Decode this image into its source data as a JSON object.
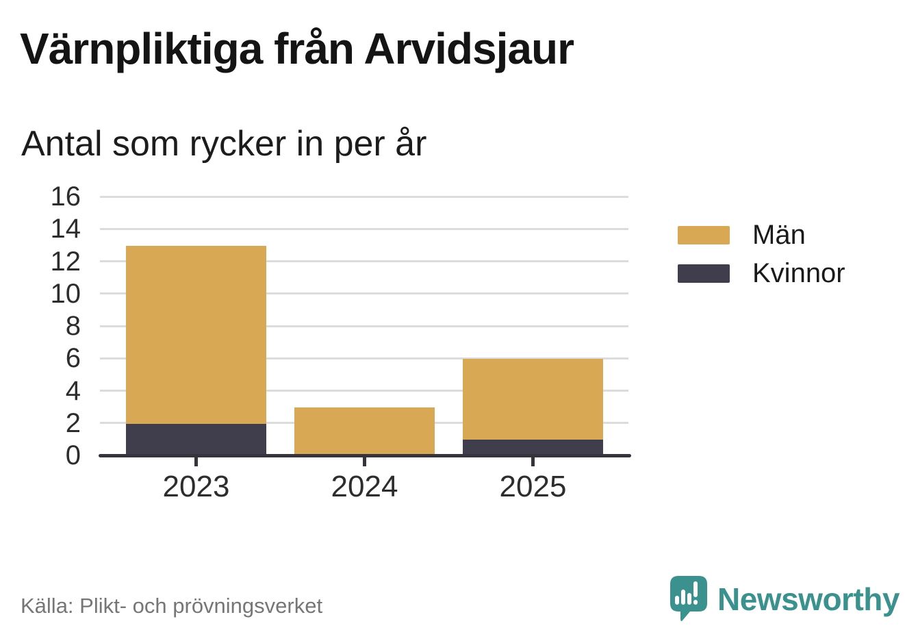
{
  "title": "Värnpliktiga från Arvidsjaur",
  "subtitle": "Antal som rycker in per år",
  "source": "Källa: Plikt- och prövningsverket",
  "brand": {
    "name": "Newsworthy",
    "icon": "newsworthy-speech-bubble-chart-icon",
    "color": "#3a918d"
  },
  "colors": {
    "man": "#d8a855",
    "kvinnor": "#403d4d",
    "axis": "#35333b",
    "grid": "#dcdcdc",
    "tick_text": "#2d2d2d",
    "muted_text": "#767676"
  },
  "chart_data": {
    "type": "bar",
    "stacked": true,
    "title": "Värnpliktiga från Arvidsjaur",
    "subtitle": "Antal som rycker in per år",
    "categories": [
      "2023",
      "2024",
      "2025"
    ],
    "series": [
      {
        "name": "Män",
        "color": "#d8a855",
        "values": [
          11,
          3,
          5
        ]
      },
      {
        "name": "Kvinnor",
        "color": "#403d4d",
        "values": [
          2,
          0,
          1
        ]
      }
    ],
    "stack_order_bottom_to_top": [
      "Kvinnor",
      "Män"
    ],
    "totals": [
      13,
      3,
      6
    ],
    "xlabel": "",
    "ylabel": "",
    "ylim": [
      0,
      16
    ],
    "yticks": [
      0,
      2,
      4,
      6,
      8,
      10,
      12,
      14,
      16
    ],
    "grid": true,
    "legend_position": "right"
  },
  "legend": {
    "items": [
      {
        "label": "Män",
        "color": "#d8a855"
      },
      {
        "label": "Kvinnor",
        "color": "#403d4d"
      }
    ]
  }
}
